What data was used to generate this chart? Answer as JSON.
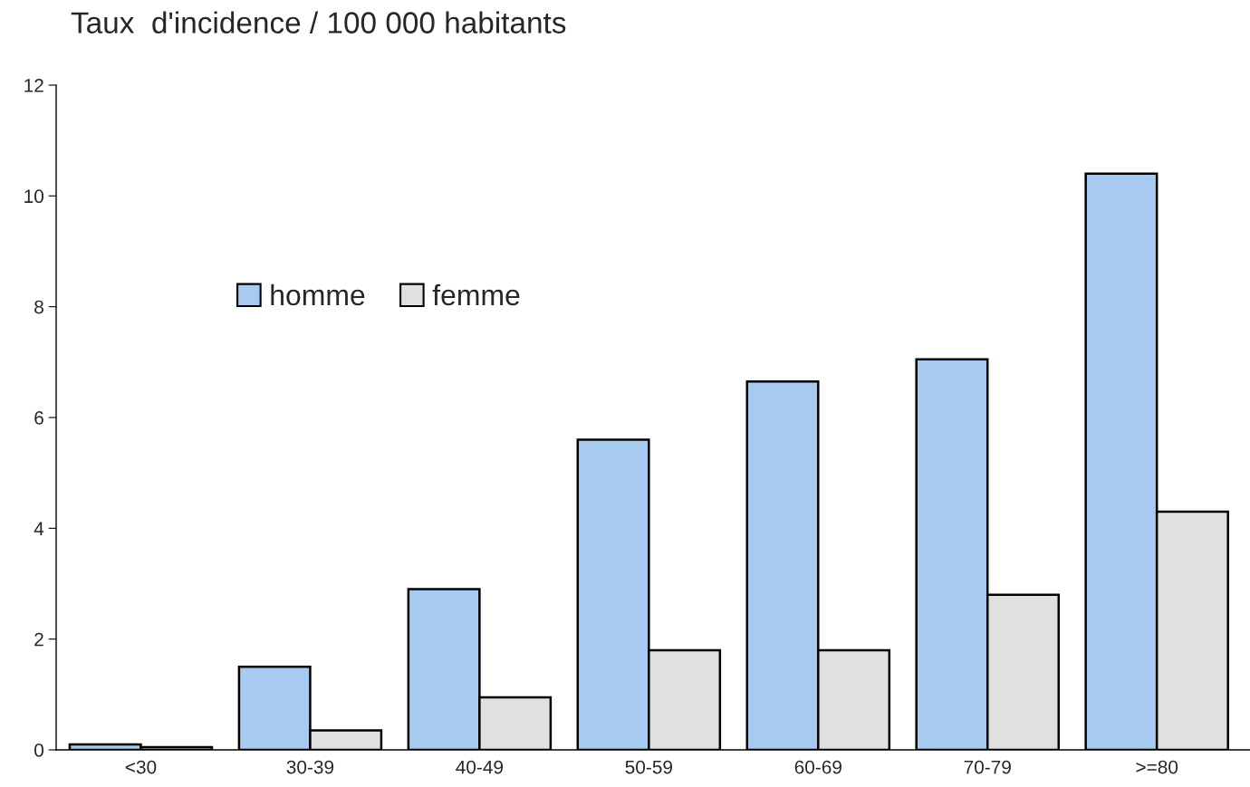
{
  "chart_data": {
    "type": "bar",
    "title": "Taux  d'incidence / 100 000 habitants",
    "categories": [
      "<30",
      "30-39",
      "40-49",
      "50-59",
      "60-69",
      "70-79",
      ">=80"
    ],
    "series": [
      {
        "name": "homme",
        "color": "#a6caf0",
        "values": [
          0.1,
          1.5,
          2.9,
          5.6,
          6.65,
          7.05,
          10.4
        ]
      },
      {
        "name": "femme",
        "color": "#e0e0e0",
        "values": [
          0.05,
          0.35,
          0.95,
          1.8,
          1.8,
          2.8,
          4.3
        ]
      }
    ],
    "ylim": [
      0,
      12
    ],
    "yticks": [
      0,
      2,
      4,
      6,
      8,
      10,
      12
    ],
    "grid": false,
    "legend": "top left"
  }
}
